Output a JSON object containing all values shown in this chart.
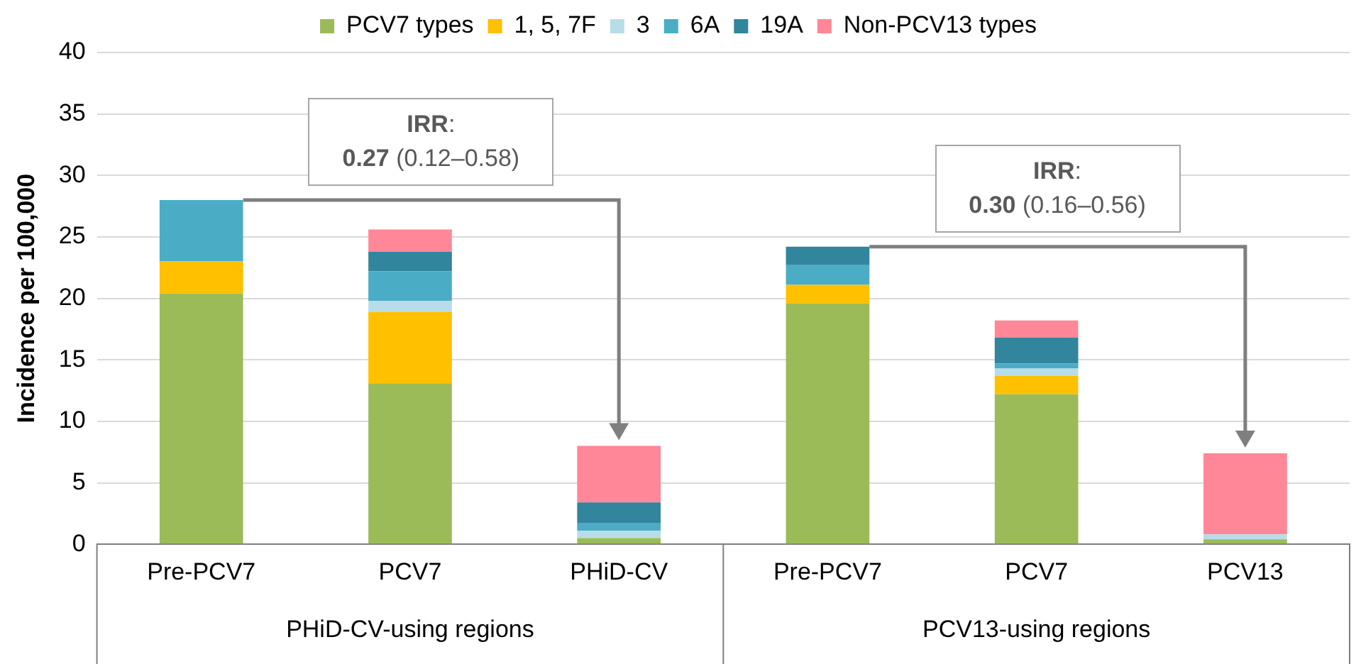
{
  "chart_data": {
    "type": "bar",
    "stacked": true,
    "ylabel": "Incidence per 100,000",
    "categories": [
      "Pre-PCV7",
      "PCV7",
      "PHiD-CV",
      "Pre-PCV7",
      "PCV7",
      "PCV13"
    ],
    "series": [
      {
        "name": "PCV7 types",
        "color": "#9bbb59",
        "values": [
          20.4,
          13.1,
          0.5,
          19.6,
          12.2,
          0.4
        ]
      },
      {
        "name": "1, 5, 7F",
        "color": "#ffc000",
        "values": [
          2.6,
          5.8,
          0,
          1.5,
          1.5,
          0
        ]
      },
      {
        "name": "3",
        "color": "#b7dde8",
        "values": [
          0,
          0.9,
          0.6,
          0,
          0.6,
          0.4
        ]
      },
      {
        "name": "6A",
        "color": "#4bacc6",
        "values": [
          5.0,
          2.4,
          0.6,
          1.6,
          0.4,
          0
        ]
      },
      {
        "name": "19A",
        "color": "#31859c",
        "values": [
          0,
          1.6,
          1.7,
          1.5,
          2.1,
          0
        ]
      },
      {
        "name": "Non-PCV13 types",
        "color": "#ff8797",
        "values": [
          0,
          1.8,
          4.6,
          0,
          1.4,
          6.6
        ]
      }
    ],
    "ylim": [
      0,
      40
    ],
    "yticks": [
      0,
      5,
      10,
      15,
      20,
      25,
      30,
      35,
      40
    ],
    "grid": "y",
    "legend": "top",
    "annotations": [
      "IRR:\n0.27 (0.12–0.58)",
      "IRR:\n0.30 (0.16–0.56)",
      "PHiD-CV-using regions",
      "PCV13-using regions"
    ]
  }
}
